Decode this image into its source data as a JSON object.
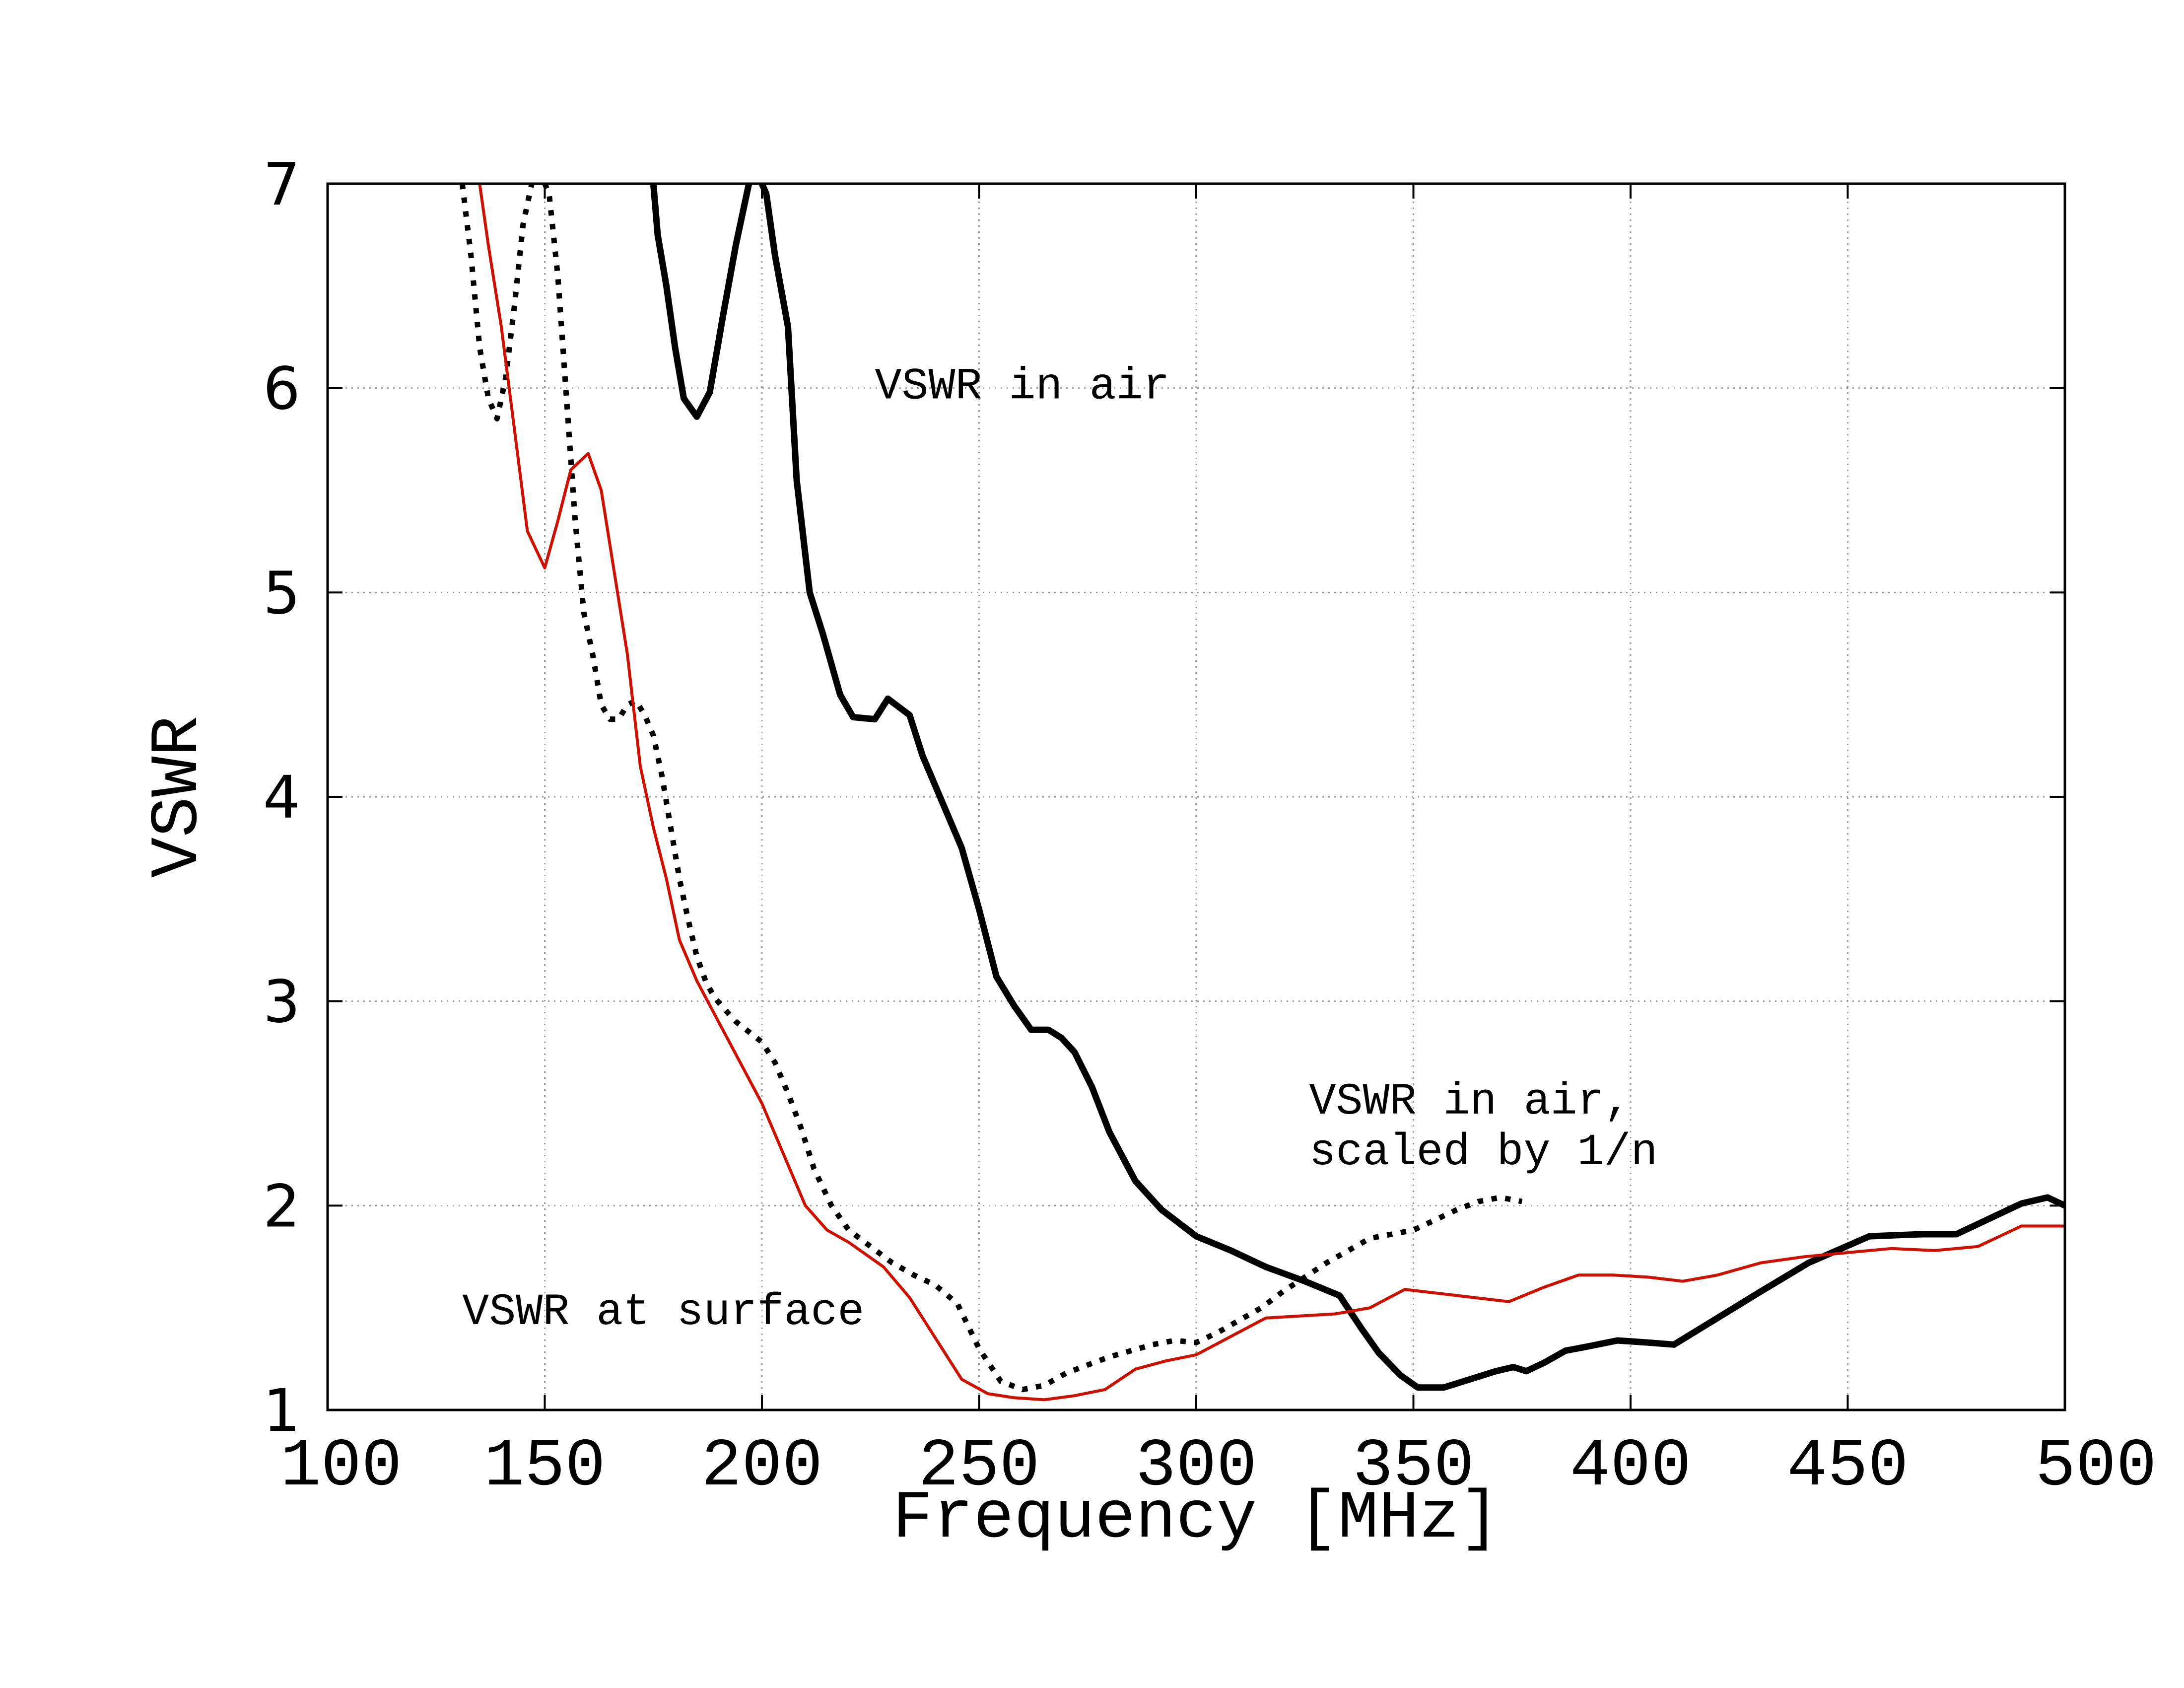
{
  "chart_data": {
    "type": "line",
    "title": "",
    "xlabel": "Frequency [MHz]",
    "ylabel": "VSWR",
    "xlim": [
      100,
      500
    ],
    "ylim": [
      1,
      7
    ],
    "xticks": [
      100,
      150,
      200,
      250,
      300,
      350,
      400,
      450,
      500
    ],
    "yticks": [
      1,
      2,
      3,
      4,
      5,
      6,
      7
    ],
    "grid": true,
    "annotations": [
      {
        "id": "air",
        "lines": [
          "VSWR in air"
        ],
        "x": 226,
        "y": 5.95
      },
      {
        "id": "scaled",
        "lines": [
          "VSWR in air,",
          "scaled by 1/n"
        ],
        "x": 326,
        "y": 2.45
      },
      {
        "id": "surface",
        "lines": [
          "VSWR at surface"
        ],
        "x": 131,
        "y": 1.42
      }
    ],
    "series": [
      {
        "name": "VSWR in air",
        "style": "solid-thick",
        "color": "#000000",
        "x": [
          175,
          176,
          178,
          180,
          182,
          185,
          188,
          191,
          194,
          197,
          199,
          201,
          203,
          206,
          208,
          211,
          214,
          218,
          221,
          226,
          229,
          234,
          237,
          241,
          246,
          250,
          254,
          258,
          262,
          266,
          269,
          272,
          276,
          280,
          286,
          292,
          300,
          308,
          316,
          325,
          333,
          338,
          342,
          347,
          351,
          357,
          363,
          369,
          373,
          376,
          380,
          385,
          390,
          397,
          404,
          410,
          420,
          430,
          441,
          455,
          467,
          475,
          483,
          490,
          496,
          500
        ],
        "y": [
          7.0,
          6.75,
          6.5,
          6.2,
          5.95,
          5.86,
          5.98,
          6.35,
          6.7,
          7.0,
          7.05,
          6.95,
          6.65,
          6.3,
          5.55,
          5.0,
          4.8,
          4.5,
          4.39,
          4.38,
          4.48,
          4.4,
          4.2,
          4.0,
          3.75,
          3.45,
          3.12,
          2.98,
          2.86,
          2.86,
          2.82,
          2.75,
          2.58,
          2.36,
          2.12,
          1.98,
          1.85,
          1.78,
          1.7,
          1.63,
          1.56,
          1.4,
          1.28,
          1.17,
          1.11,
          1.11,
          1.15,
          1.19,
          1.21,
          1.19,
          1.23,
          1.29,
          1.31,
          1.34,
          1.33,
          1.32,
          1.45,
          1.58,
          1.72,
          1.85,
          1.86,
          1.86,
          1.94,
          2.01,
          2.04,
          2.0
        ]
      },
      {
        "name": "VSWR in air, scaled by 1/n",
        "style": "dotted",
        "color": "#000000",
        "x": [
          131,
          133,
          135,
          137,
          139,
          141,
          143,
          145,
          147,
          149,
          151,
          153,
          155,
          157,
          159,
          161,
          163,
          165,
          167,
          169,
          171,
          173,
          175,
          177,
          179,
          181,
          183,
          185,
          187,
          189,
          191,
          194,
          197,
          200,
          203,
          206,
          209,
          212,
          216,
          220,
          225,
          230,
          235,
          240,
          245,
          250,
          255,
          260,
          265,
          270,
          275,
          280,
          285,
          290,
          295,
          300,
          305,
          310,
          315,
          320,
          325,
          330,
          335,
          340,
          345,
          350,
          355,
          360,
          365,
          370,
          375
        ],
        "y": [
          7.0,
          6.65,
          6.2,
          5.95,
          5.85,
          6.05,
          6.4,
          6.8,
          7.0,
          7.05,
          6.95,
          6.55,
          5.95,
          5.35,
          4.9,
          4.7,
          4.45,
          4.38,
          4.38,
          4.45,
          4.47,
          4.4,
          4.3,
          4.1,
          3.85,
          3.6,
          3.4,
          3.22,
          3.1,
          3.02,
          2.97,
          2.9,
          2.85,
          2.8,
          2.7,
          2.55,
          2.38,
          2.18,
          2.0,
          1.88,
          1.8,
          1.72,
          1.66,
          1.61,
          1.52,
          1.3,
          1.14,
          1.1,
          1.12,
          1.18,
          1.22,
          1.26,
          1.29,
          1.32,
          1.34,
          1.33,
          1.38,
          1.44,
          1.5,
          1.58,
          1.65,
          1.72,
          1.78,
          1.84,
          1.86,
          1.88,
          1.93,
          1.98,
          2.02,
          2.04,
          2.02
        ]
      },
      {
        "name": "VSWR at surface",
        "style": "solid-thin",
        "color": "#cc1100",
        "x": [
          135,
          137,
          140,
          143,
          146,
          150,
          153,
          156,
          160,
          163,
          166,
          169,
          172,
          175,
          178,
          181,
          185,
          190,
          195,
          200,
          205,
          210,
          215,
          220,
          228,
          234,
          240,
          246,
          252,
          258,
          265,
          272,
          279,
          286,
          293,
          300,
          308,
          316,
          324,
          332,
          340,
          348,
          356,
          364,
          372,
          380,
          388,
          396,
          404,
          412,
          420,
          430,
          440,
          450,
          460,
          470,
          480,
          490,
          500
        ],
        "y": [
          7.0,
          6.7,
          6.3,
          5.8,
          5.3,
          5.12,
          5.35,
          5.6,
          5.68,
          5.5,
          5.1,
          4.7,
          4.15,
          3.85,
          3.6,
          3.3,
          3.1,
          2.9,
          2.7,
          2.5,
          2.25,
          2.0,
          1.88,
          1.82,
          1.7,
          1.55,
          1.35,
          1.15,
          1.08,
          1.06,
          1.05,
          1.07,
          1.1,
          1.2,
          1.24,
          1.27,
          1.36,
          1.45,
          1.46,
          1.47,
          1.5,
          1.59,
          1.57,
          1.55,
          1.53,
          1.6,
          1.66,
          1.66,
          1.65,
          1.63,
          1.66,
          1.72,
          1.75,
          1.77,
          1.79,
          1.78,
          1.8,
          1.9,
          1.9
        ]
      }
    ]
  }
}
